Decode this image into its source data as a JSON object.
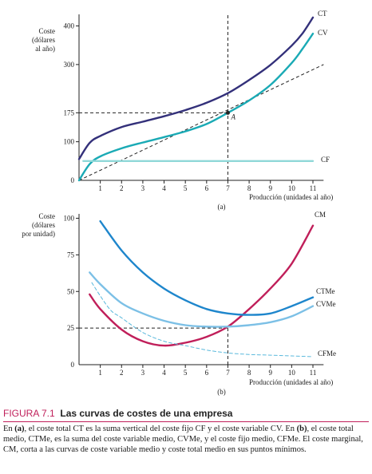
{
  "chart_data": [
    {
      "type": "line",
      "panel_label": "(a)",
      "ylabel_lines": [
        "Coste",
        "(dólares",
        "al año)"
      ],
      "xlabel": "Producción (unidades al año)",
      "x_ticks": [
        "1",
        "2",
        "3",
        "4",
        "5",
        "6",
        "7",
        "8",
        "9",
        "10",
        "11"
      ],
      "y_ticks": [
        "0",
        "100",
        "175",
        "300",
        "400"
      ],
      "xlim": [
        0,
        11.5
      ],
      "ylim": [
        0,
        430
      ],
      "point_label": "A",
      "point": [
        7,
        175
      ],
      "dashed_ray": {
        "x": [
          0,
          11.5
        ],
        "y": [
          0,
          300
        ]
      },
      "reference_lines": [
        {
          "axis": "y",
          "value": 175,
          "from": 0,
          "to": 7
        },
        {
          "axis": "x",
          "value": 7,
          "from": 0,
          "to": 430
        }
      ],
      "series": [
        {
          "name": "CT",
          "color": "#33307a",
          "x": [
            0,
            0.5,
            1,
            2,
            3,
            4,
            5,
            6,
            7,
            8,
            9,
            10,
            10.5,
            11
          ],
          "y": [
            55,
            97,
            115,
            138,
            152,
            166,
            182,
            201,
            226,
            260,
            299,
            349,
            380,
            422
          ]
        },
        {
          "name": "CV",
          "color": "#1aaab5",
          "x": [
            0,
            0.5,
            1,
            2,
            3,
            4,
            5,
            6,
            7,
            8,
            9,
            10,
            10.5,
            11
          ],
          "y": [
            0,
            42,
            62,
            83,
            98,
            112,
            127,
            146,
            175,
            207,
            247,
            304,
            340,
            380
          ]
        },
        {
          "name": "CF",
          "color": "#8fd8d8",
          "x": [
            0.2,
            11
          ],
          "y": [
            50,
            50
          ]
        }
      ]
    },
    {
      "type": "line",
      "panel_label": "(b)",
      "ylabel_lines": [
        "Coste",
        "(dólares",
        "por unidad)"
      ],
      "xlabel": "Producción (unidades al año)",
      "x_ticks": [
        "1",
        "2",
        "3",
        "4",
        "5",
        "6",
        "7",
        "8",
        "9",
        "10",
        "11"
      ],
      "y_ticks": [
        "0",
        "25",
        "50",
        "75",
        "100"
      ],
      "xlim": [
        0,
        11.5
      ],
      "ylim": [
        0,
        103
      ],
      "reference_lines": [
        {
          "axis": "y",
          "value": 25,
          "from": 0,
          "to": 7
        },
        {
          "axis": "x",
          "value": 7,
          "from": 0,
          "to": 25
        }
      ],
      "series": [
        {
          "name": "CM",
          "color": "#c01f5a",
          "x": [
            0.5,
            1,
            2,
            3,
            4,
            5,
            6,
            7,
            8,
            9,
            10,
            11
          ],
          "y": [
            48,
            38,
            24,
            16,
            13,
            15,
            19,
            26,
            38,
            52,
            69,
            95
          ]
        },
        {
          "name": "CTMe",
          "color": "#1e86cc",
          "x": [
            1,
            2,
            3,
            4,
            5,
            6,
            7,
            8,
            9,
            10,
            11
          ],
          "y": [
            98,
            78,
            63,
            52,
            44,
            38,
            35,
            34,
            35,
            40,
            46
          ]
        },
        {
          "name": "CVMe",
          "color": "#7cc0e6",
          "x": [
            0.5,
            1,
            2,
            3,
            4,
            5,
            6,
            7,
            8,
            9,
            10,
            11
          ],
          "y": [
            63,
            55,
            42,
            35,
            30,
            27,
            26,
            26,
            27,
            29,
            33,
            40
          ]
        },
        {
          "name": "CFMe",
          "color": "#5ab9dc",
          "x": [
            0.6,
            1,
            1.5,
            2,
            3,
            4,
            5,
            6,
            7,
            8,
            9,
            10,
            11
          ],
          "y": [
            56,
            47,
            37,
            32,
            22,
            16,
            13,
            10,
            8,
            7,
            6.5,
            6,
            5.5
          ]
        }
      ]
    }
  ],
  "caption": {
    "label": "FIGURA 7.1",
    "title": "Las curvas de costes de una empresa",
    "text_1": "En ",
    "bold_1": "(a)",
    "text_2": ", el coste total CT es la suma vertical del coste fijo CF y el coste variable CV. En ",
    "bold_2": "(b)",
    "text_3": ", el coste total medio, CTMe, es la suma del coste variable medio, CVMe, y el coste fijo medio, CFMe. El coste marginal, CM, corta a las curvas de coste variable medio y coste total medio en sus puntos mínimos."
  }
}
